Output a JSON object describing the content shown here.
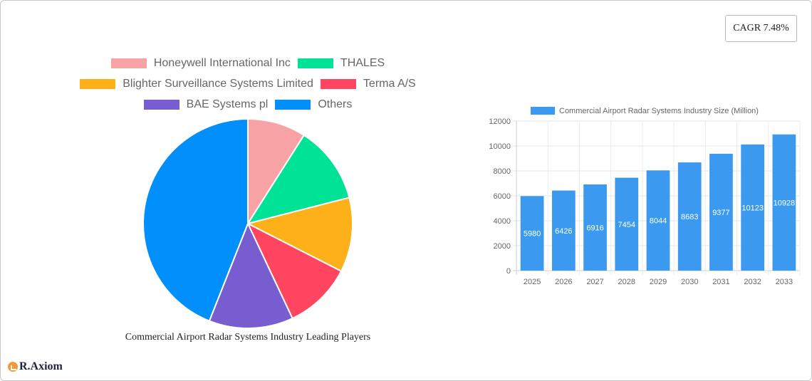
{
  "badge": {
    "cagr_label": "CAGR 7.48%"
  },
  "pie_chart": {
    "title": "Commercial Airport Radar Systems Industry Leading Players",
    "legend_rows": [
      [
        0,
        1
      ],
      [
        2,
        3
      ],
      [
        4,
        5
      ]
    ]
  },
  "bar_chart": {
    "legend_label": "Commercial Airport Radar Systems Industry Size (Million)",
    "bar_color": "#3b9aef"
  },
  "logo": {
    "text": "R.Axiom",
    "mark_color": "#f29a3a"
  },
  "chart_data": [
    {
      "type": "pie",
      "title": "Commercial Airport Radar Systems Industry Leading Players",
      "legend_position": "top",
      "labels": [
        "Honeywell International Inc",
        "THALES",
        "Blighter Surveillance Systems Limited",
        "Terma A/S",
        "BAE Systems pl",
        "Others"
      ],
      "values": [
        9,
        12,
        11.5,
        10.5,
        13,
        44
      ],
      "colors": [
        "#f7a3a6",
        "#00e396",
        "#feb019",
        "#ff4560",
        "#775dd0",
        "#008ffb"
      ],
      "unit": "% share (estimated from slice angles)"
    },
    {
      "type": "bar",
      "title": "",
      "legend": [
        "Commercial Airport Radar Systems Industry Size (Million)"
      ],
      "legend_position": "top",
      "categories": [
        "2025",
        "2026",
        "2027",
        "2028",
        "2029",
        "2030",
        "2031",
        "2032",
        "2033"
      ],
      "series": [
        {
          "name": "Commercial Airport Radar Systems Industry Size (Million)",
          "values": [
            5980,
            6426,
            6916,
            7454,
            8044,
            8683,
            9377,
            10123,
            10928
          ]
        }
      ],
      "xlabel": "",
      "ylabel": "",
      "ylim": [
        0,
        12000
      ],
      "yticks": [
        0,
        2000,
        4000,
        6000,
        8000,
        10000,
        12000
      ],
      "grid": true,
      "data_labels": true
    }
  ]
}
